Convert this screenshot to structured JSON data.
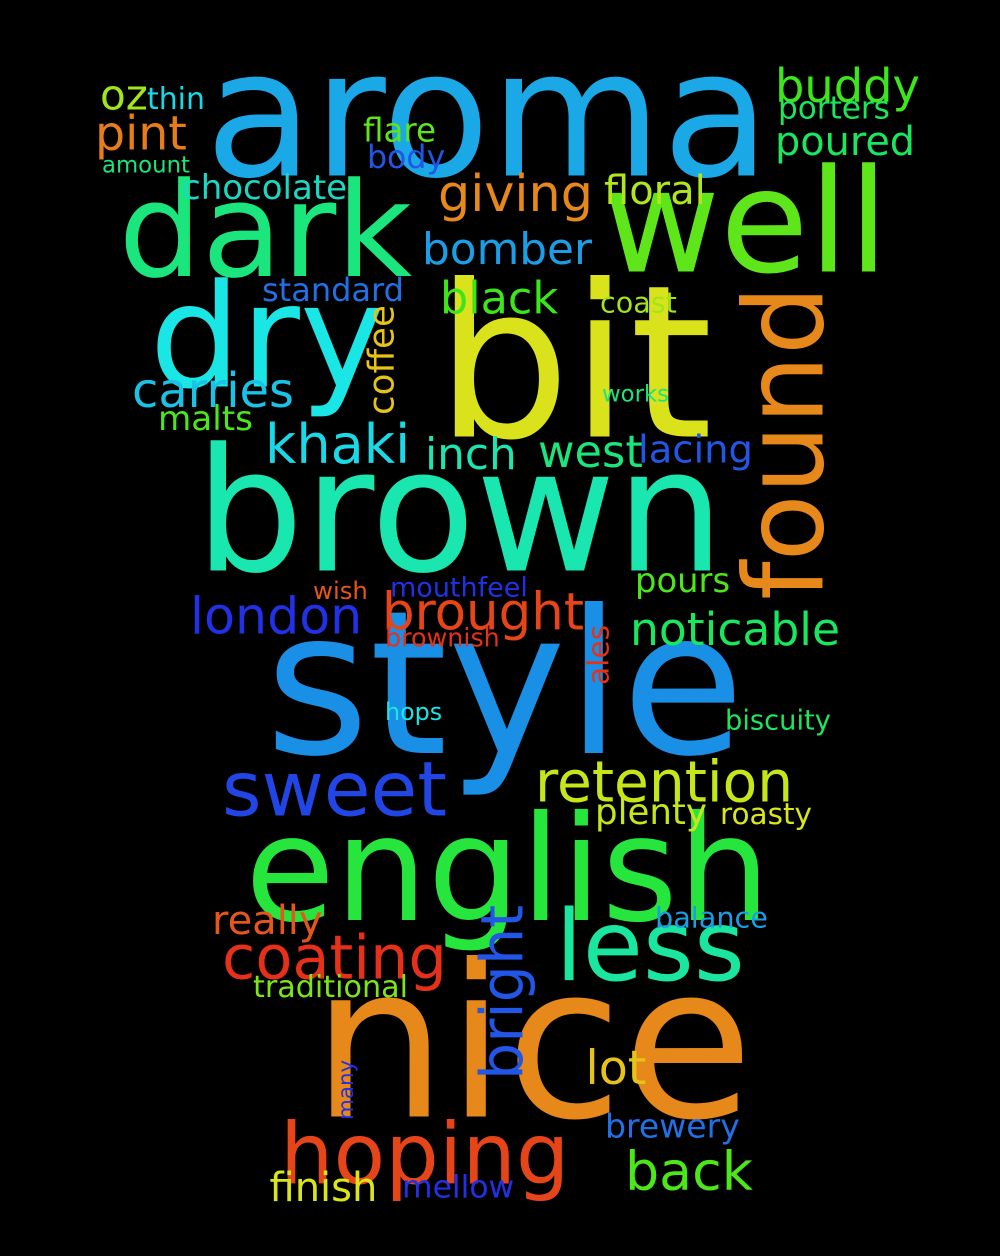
{
  "words": [
    {
      "text": "aroma",
      "color": "#1aa8e6"
    },
    {
      "text": "bit",
      "color": "#d9e21a"
    },
    {
      "text": "brown",
      "color": "#1ae6b0"
    },
    {
      "text": "style",
      "color": "#1a8fe6"
    },
    {
      "text": "nice",
      "color": "#e6881a"
    },
    {
      "text": "english",
      "color": "#26e63d"
    },
    {
      "text": "well",
      "color": "#5ee61a"
    },
    {
      "text": "dark",
      "color": "#1ae67d"
    },
    {
      "text": "dry",
      "color": "#1ae6e6"
    },
    {
      "text": "found",
      "color": "#e6881a"
    },
    {
      "text": "hoping",
      "color": "#e6451a"
    },
    {
      "text": "sweet",
      "color": "#2245e6"
    },
    {
      "text": "less",
      "color": "#1ae6a0"
    },
    {
      "text": "coating",
      "color": "#e6301a"
    },
    {
      "text": "back",
      "color": "#4de61a"
    },
    {
      "text": "buddy",
      "color": "#3de61a"
    },
    {
      "text": "retention",
      "color": "#c7e61a"
    },
    {
      "text": "london",
      "color": "#2230e6"
    },
    {
      "text": "brought",
      "color": "#e6451a"
    },
    {
      "text": "bomber",
      "color": "#1a9ee6"
    },
    {
      "text": "khaki",
      "color": "#1ad8e6"
    },
    {
      "text": "bright",
      "color": "#2256e6"
    },
    {
      "text": "noticable",
      "color": "#1ae65e"
    },
    {
      "text": "giving",
      "color": "#e6881a"
    },
    {
      "text": "west",
      "color": "#1ae67d"
    },
    {
      "text": "poured",
      "color": "#1ae65e"
    },
    {
      "text": "black",
      "color": "#3de61a"
    },
    {
      "text": "inch",
      "color": "#1ae6b0"
    },
    {
      "text": "carries",
      "color": "#1ac2e6"
    },
    {
      "text": "pint",
      "color": "#e67d1a"
    },
    {
      "text": "lot",
      "color": "#e6c21a"
    },
    {
      "text": "oz",
      "color": "#a0e61a"
    },
    {
      "text": "coffee",
      "color": "#e6c21a"
    },
    {
      "text": "chocolate",
      "color": "#1ad8c2"
    },
    {
      "text": "floral",
      "color": "#b0e61a"
    },
    {
      "text": "pours",
      "color": "#4de61a"
    },
    {
      "text": "lacing",
      "color": "#2256e6"
    },
    {
      "text": "malts",
      "color": "#4de61a"
    },
    {
      "text": "standard",
      "color": "#2270e6"
    },
    {
      "text": "plenty",
      "color": "#c7e61a"
    },
    {
      "text": "really",
      "color": "#e6561a"
    },
    {
      "text": "brewery",
      "color": "#2270e6"
    },
    {
      "text": "finish",
      "color": "#d9e61a"
    },
    {
      "text": "mellow",
      "color": "#2230e6"
    },
    {
      "text": "body",
      "color": "#2256e6"
    },
    {
      "text": "traditional",
      "color": "#7de61a"
    },
    {
      "text": "balance",
      "color": "#1a9ee6"
    },
    {
      "text": "roasty",
      "color": "#d9e61a"
    },
    {
      "text": "mouthfeel",
      "color": "#2230e6"
    },
    {
      "text": "flare",
      "color": "#5ee61a"
    },
    {
      "text": "porters",
      "color": "#1ae65e"
    },
    {
      "text": "coast",
      "color": "#a0e61a"
    },
    {
      "text": "amount",
      "color": "#1ae67d"
    },
    {
      "text": "works",
      "color": "#1ae67d"
    },
    {
      "text": "hops",
      "color": "#1ae6e6"
    },
    {
      "text": "biscuity",
      "color": "#1ae65e"
    },
    {
      "text": "brownish",
      "color": "#e6301a"
    },
    {
      "text": "wish",
      "color": "#e6561a"
    },
    {
      "text": "thin",
      "color": "#1ad8e6"
    },
    {
      "text": "ales",
      "color": "#e6301a"
    },
    {
      "text": "many",
      "color": "#2230e6"
    }
  ]
}
